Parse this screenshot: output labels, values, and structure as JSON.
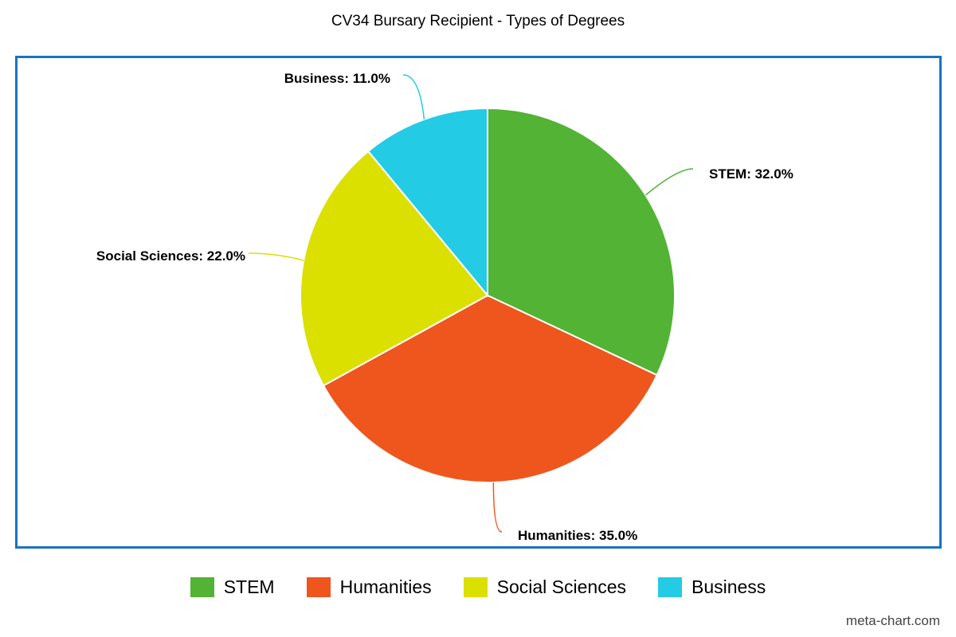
{
  "chart_data": {
    "type": "pie",
    "title": "CV34 Bursary Recipient - Types of Degrees",
    "categories": [
      "STEM",
      "Humanities",
      "Social Sciences",
      "Business"
    ],
    "values": [
      32.0,
      35.0,
      22.0,
      11.0
    ],
    "labels": [
      "STEM: 32.0%",
      "Humanities: 35.0%",
      "Social Sciences: 22.0%",
      "Business: 11.0%"
    ],
    "colors": [
      "#52b335",
      "#ee561e",
      "#dbe000",
      "#24cbe5"
    ],
    "start_angle": "top, clockwise",
    "legend_position": "bottom-center"
  },
  "legend": {
    "items": [
      {
        "label": "STEM",
        "color": "#52b335"
      },
      {
        "label": "Humanities",
        "color": "#ee561e"
      },
      {
        "label": "Social Sciences",
        "color": "#dbe000"
      },
      {
        "label": "Business",
        "color": "#24cbe5"
      }
    ]
  },
  "watermark": "meta-chart.com",
  "colors": {
    "frame_border": "#1a73c0"
  }
}
